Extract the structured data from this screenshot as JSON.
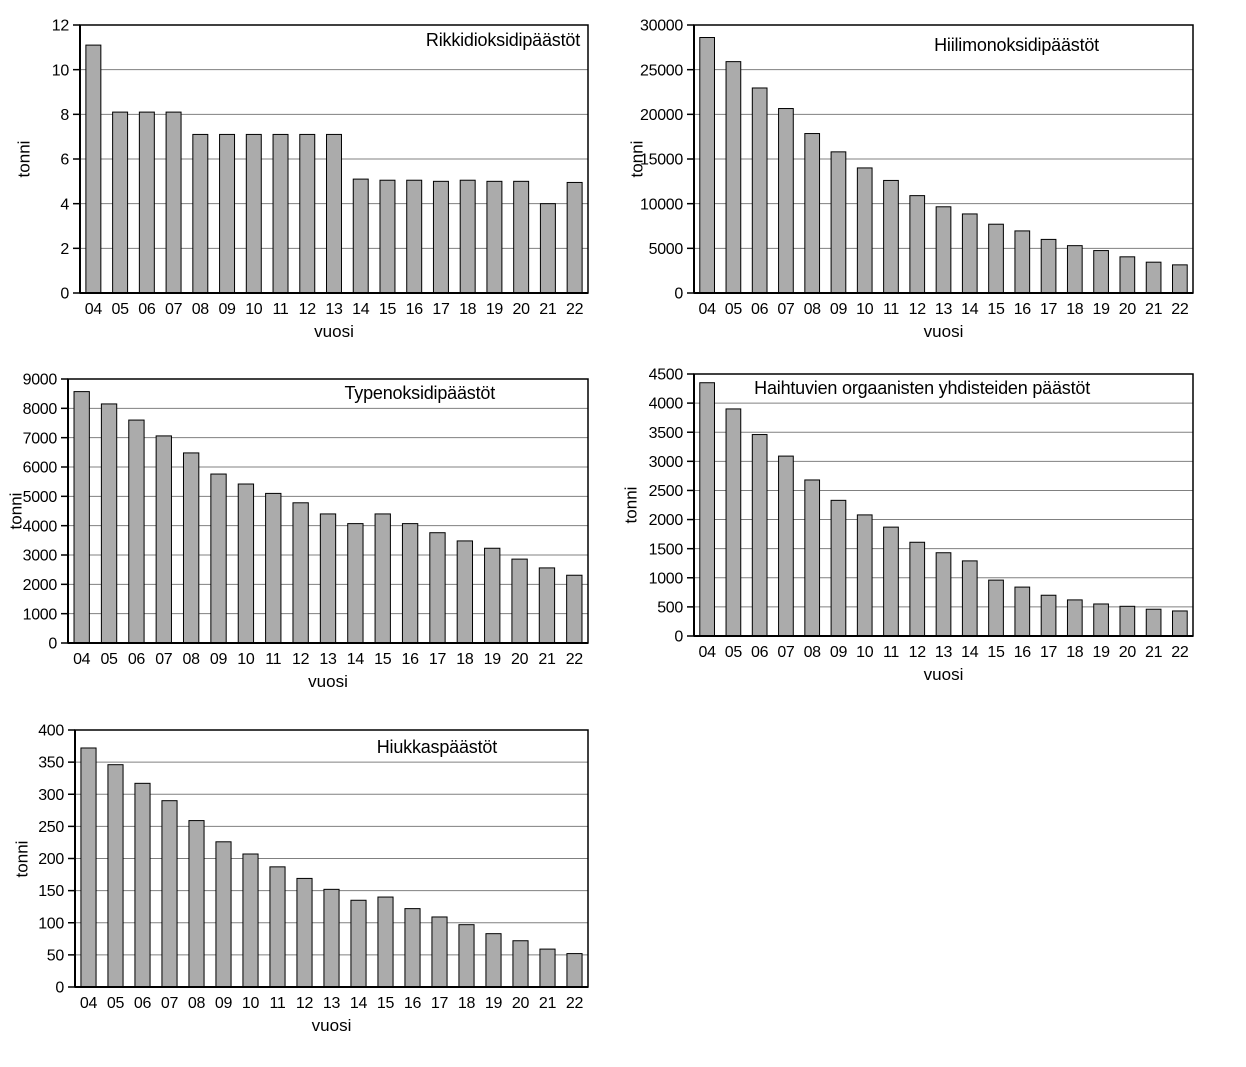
{
  "style": {
    "background": "#ffffff",
    "bar_fill": "#ababab",
    "bar_border": "#000000",
    "grid_color": "#808080",
    "axis_color": "#000000",
    "text_color": "#000000"
  },
  "chart_data": [
    {
      "type": "bar",
      "title": "Rikkidioksidipäästöt",
      "xlabel": "vuosi",
      "ylabel": "tonni",
      "categories": [
        "04",
        "05",
        "06",
        "07",
        "08",
        "09",
        "10",
        "11",
        "12",
        "13",
        "14",
        "15",
        "16",
        "17",
        "18",
        "19",
        "20",
        "21",
        "22"
      ],
      "values": [
        11.1,
        8.1,
        8.1,
        8.1,
        7.1,
        7.1,
        7.1,
        7.1,
        7.1,
        7.1,
        5.1,
        5.05,
        5.05,
        5,
        5.05,
        5,
        5,
        4,
        4.95
      ],
      "ylim": [
        0,
        12
      ],
      "ytick_step": 2,
      "grid": true,
      "legend_position": "none"
    },
    {
      "type": "bar",
      "title": "Hiilimonoksidipäästöt",
      "xlabel": "vuosi",
      "ylabel": "tonni",
      "categories": [
        "04",
        "05",
        "06",
        "07",
        "08",
        "09",
        "10",
        "11",
        "12",
        "13",
        "14",
        "15",
        "16",
        "17",
        "18",
        "19",
        "20",
        "21",
        "22"
      ],
      "values": [
        28600,
        25900,
        22950,
        20650,
        17850,
        15800,
        14000,
        12600,
        10900,
        9650,
        8850,
        7700,
        6950,
        6000,
        5300,
        4750,
        4050,
        3450,
        3150
      ],
      "ylim": [
        0,
        30000
      ],
      "ytick_step": 5000,
      "grid": true,
      "legend_position": "none"
    },
    {
      "type": "bar",
      "title": "Typenoksidipäästöt",
      "xlabel": "vuosi",
      "ylabel": "tonni",
      "categories": [
        "04",
        "05",
        "06",
        "07",
        "08",
        "09",
        "10",
        "11",
        "12",
        "13",
        "14",
        "15",
        "16",
        "17",
        "18",
        "19",
        "20",
        "21",
        "22"
      ],
      "values": [
        8570,
        8150,
        7600,
        7060,
        6480,
        5760,
        5420,
        5100,
        4780,
        4400,
        4070,
        4400,
        4070,
        3760,
        3480,
        3230,
        2860,
        2560,
        2310
      ],
      "ylim": [
        0,
        9000
      ],
      "ytick_step": 1000,
      "grid": true,
      "legend_position": "none"
    },
    {
      "type": "bar",
      "title": "Haihtuvien orgaanisten yhdisteiden päästöt",
      "xlabel": "vuosi",
      "ylabel": "tonni",
      "categories": [
        "04",
        "05",
        "06",
        "07",
        "08",
        "09",
        "10",
        "11",
        "12",
        "13",
        "14",
        "15",
        "16",
        "17",
        "18",
        "19",
        "20",
        "21",
        "22"
      ],
      "values": [
        4350,
        3900,
        3460,
        3090,
        2680,
        2330,
        2080,
        1870,
        1610,
        1430,
        1290,
        960,
        840,
        700,
        620,
        550,
        510,
        460,
        430
      ],
      "ylim": [
        0,
        4500
      ],
      "ytick_step": 500,
      "grid": true,
      "legend_position": "none"
    },
    {
      "type": "bar",
      "title": "Hiukkaspäästöt",
      "xlabel": "vuosi",
      "ylabel": "tonni",
      "categories": [
        "04",
        "05",
        "06",
        "07",
        "08",
        "09",
        "10",
        "11",
        "12",
        "13",
        "14",
        "15",
        "16",
        "17",
        "18",
        "19",
        "20",
        "21",
        "22"
      ],
      "values": [
        372,
        346,
        317,
        290,
        259,
        226,
        207,
        187,
        169,
        152,
        135,
        140,
        122,
        109,
        97,
        83,
        72,
        59,
        52
      ],
      "ylim": [
        0,
        400
      ],
      "ytick_step": 50,
      "grid": true,
      "legend_position": "none"
    }
  ]
}
